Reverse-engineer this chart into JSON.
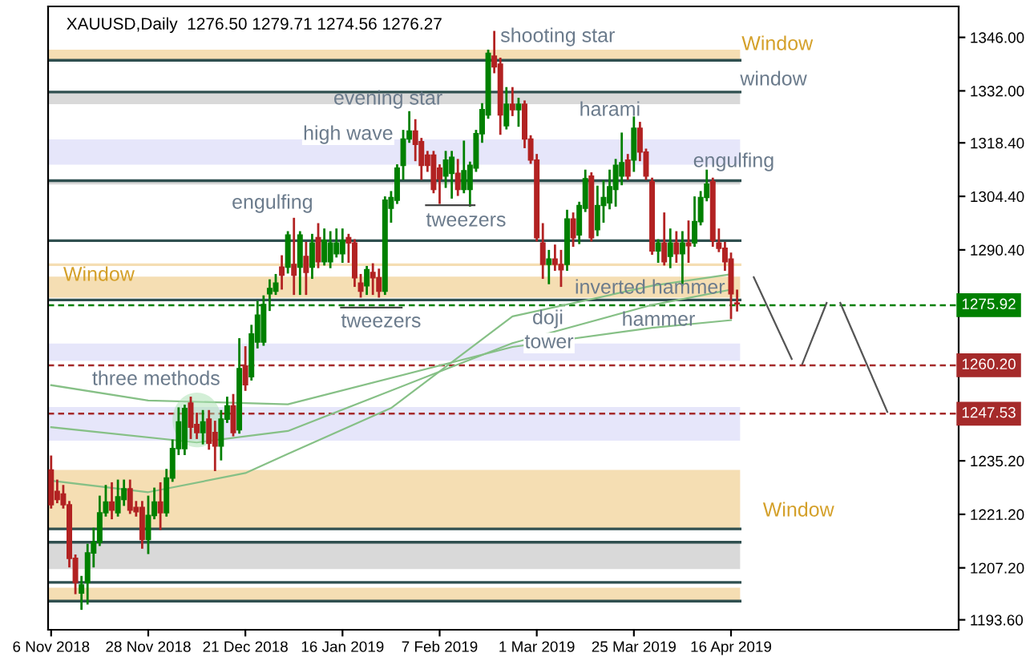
{
  "chart_data": {
    "type": "candlestick",
    "title": "XAUUSD,Daily  1276.50 1279.71 1274.56 1276.27",
    "categories": [
      "6 Nov 2018",
      null,
      null,
      null,
      null,
      null,
      null,
      null,
      null,
      null,
      null,
      null,
      null,
      null,
      null,
      null,
      "28 Nov 2018",
      null,
      null,
      null,
      null,
      null,
      null,
      null,
      null,
      null,
      null,
      null,
      null,
      null,
      null,
      null,
      "21 Dec 2018",
      null,
      null,
      null,
      null,
      null,
      null,
      null,
      null,
      null,
      null,
      null,
      null,
      null,
      null,
      null,
      "16 Jan 2019",
      null,
      null,
      null,
      null,
      null,
      null,
      null,
      null,
      null,
      null,
      null,
      null,
      null,
      null,
      null,
      "7 Feb 2019",
      null,
      null,
      null,
      null,
      null,
      null,
      null,
      null,
      null,
      null,
      null,
      null,
      null,
      null,
      null,
      "1 Mar 2019",
      null,
      null,
      null,
      null,
      null,
      null,
      null,
      null,
      null,
      null,
      null,
      null,
      null,
      null,
      null,
      "25 Mar 2019",
      null,
      null,
      null,
      null,
      null,
      null,
      null,
      null,
      null,
      null,
      null,
      null,
      null,
      null,
      null,
      "16 Apr 2019",
      null,
      null,
      null,
      null,
      null,
      null,
      null,
      null,
      null,
      null,
      null,
      null,
      null,
      null,
      null,
      null,
      null,
      null,
      null,
      null,
      null,
      null,
      null,
      null,
      null,
      null,
      null,
      null,
      null,
      null,
      null,
      null,
      null,
      null,
      null,
      null,
      null
    ],
    "ohlc": [
      [
        1232.8,
        1236.3,
        1223.0,
        1223.7
      ],
      [
        1227.2,
        1230.0,
        1224.4,
        1225.1
      ],
      [
        1226.5,
        1228.6,
        1223.0,
        1223.7
      ],
      [
        1223.7,
        1224.4,
        1207.6,
        1209.7
      ],
      [
        1209.7,
        1210.4,
        1200.6,
        1203.4
      ],
      [
        1200.6,
        1204.8,
        1196.5,
        1202.7
      ],
      [
        1203.4,
        1213.2,
        1197.9,
        1211.1
      ],
      [
        1211.1,
        1217.4,
        1207.6,
        1213.9
      ],
      [
        1213.9,
        1225.8,
        1213.2,
        1221.6
      ],
      [
        1221.6,
        1228.6,
        1220.9,
        1224.4
      ],
      [
        1224.4,
        1229.3,
        1220.2,
        1222.3
      ],
      [
        1221.6,
        1230.0,
        1220.9,
        1225.8
      ],
      [
        1225.1,
        1230.0,
        1223.7,
        1227.9
      ],
      [
        1227.9,
        1230.0,
        1221.6,
        1222.3
      ],
      [
        1223.0,
        1224.4,
        1220.9,
        1221.9
      ],
      [
        1223.0,
        1224.4,
        1212.5,
        1214.6
      ],
      [
        1214.6,
        1225.8,
        1211.1,
        1220.9
      ],
      [
        1220.9,
        1227.9,
        1220.2,
        1224.4
      ],
      [
        1224.4,
        1229.3,
        1217.4,
        1221.6
      ],
      [
        1221.6,
        1232.8,
        1220.9,
        1230.7
      ],
      [
        1230.7,
        1240.5,
        1230.0,
        1238.4
      ],
      [
        1238.4,
        1248.9,
        1237.0,
        1245.4
      ],
      [
        1238.4,
        1249.6,
        1237.0,
        1248.9
      ],
      [
        1250.3,
        1251.7,
        1241.2,
        1244.0
      ],
      [
        1244.7,
        1247.5,
        1241.2,
        1242.6
      ],
      [
        1242.6,
        1248.2,
        1239.8,
        1245.4
      ],
      [
        1246.1,
        1248.2,
        1238.4,
        1239.8
      ],
      [
        1242.6,
        1245.4,
        1232.8,
        1239.1
      ],
      [
        1239.1,
        1248.2,
        1235.6,
        1246.1
      ],
      [
        1246.1,
        1251.7,
        1245.4,
        1249.6
      ],
      [
        1249.6,
        1252.4,
        1241.9,
        1242.6
      ],
      [
        1243.3,
        1267.0,
        1242.6,
        1259.3
      ],
      [
        1260.0,
        1264.9,
        1253.8,
        1255.1
      ],
      [
        1257.2,
        1270.5,
        1256.5,
        1268.4
      ],
      [
        1266.3,
        1276.8,
        1264.9,
        1273.3
      ],
      [
        1266.3,
        1278.2,
        1265.6,
        1276.1
      ],
      [
        1278.9,
        1282.4,
        1274.7,
        1280.3
      ],
      [
        1279.6,
        1283.8,
        1278.9,
        1281.7
      ],
      [
        1285.9,
        1288.7,
        1280.3,
        1283.8
      ],
      [
        1285.9,
        1295.0,
        1284.5,
        1294.3
      ],
      [
        1286.6,
        1298.5,
        1278.9,
        1283.8
      ],
      [
        1285.9,
        1295.0,
        1278.9,
        1294.3
      ],
      [
        1288.7,
        1292.2,
        1278.9,
        1284.5
      ],
      [
        1285.9,
        1294.3,
        1283.1,
        1292.2
      ],
      [
        1293.6,
        1297.1,
        1285.9,
        1287.3
      ],
      [
        1287.3,
        1295.7,
        1286.6,
        1292.9
      ],
      [
        1287.3,
        1295.0,
        1285.9,
        1292.2
      ],
      [
        1289.4,
        1295.7,
        1288.7,
        1292.2
      ],
      [
        1289.4,
        1295.7,
        1287.3,
        1292.9
      ],
      [
        1293.6,
        1294.3,
        1287.3,
        1292.2
      ],
      [
        1292.2,
        1292.9,
        1281.0,
        1283.1
      ],
      [
        1281.7,
        1283.8,
        1278.2,
        1279.6
      ],
      [
        1281.0,
        1285.9,
        1278.9,
        1285.2
      ],
      [
        1284.5,
        1286.6,
        1278.9,
        1283.1
      ],
      [
        1283.1,
        1285.2,
        1278.2,
        1279.6
      ],
      [
        1279.6,
        1304.1,
        1278.9,
        1303.4
      ],
      [
        1301.3,
        1305.5,
        1297.8,
        1304.1
      ],
      [
        1303.4,
        1312.5,
        1302.7,
        1311.8
      ],
      [
        1312.5,
        1321.5,
        1309.0,
        1319.4
      ],
      [
        1319.4,
        1326.4,
        1318.7,
        1321.5
      ],
      [
        1321.5,
        1324.3,
        1313.9,
        1318.0
      ],
      [
        1318.7,
        1319.4,
        1309.0,
        1312.5
      ],
      [
        1315.2,
        1316.0,
        1311.1,
        1312.5
      ],
      [
        1315.2,
        1316.0,
        1305.5,
        1306.2
      ],
      [
        1311.8,
        1312.5,
        1302.7,
        1309.0
      ],
      [
        1309.7,
        1316.0,
        1306.9,
        1313.9
      ],
      [
        1310.4,
        1316.0,
        1304.1,
        1314.6
      ],
      [
        1310.4,
        1313.9,
        1304.8,
        1306.2
      ],
      [
        1306.2,
        1318.7,
        1305.5,
        1311.1
      ],
      [
        1306.2,
        1313.2,
        1302.0,
        1312.5
      ],
      [
        1311.8,
        1321.5,
        1311.1,
        1320.8
      ],
      [
        1320.8,
        1328.5,
        1318.7,
        1327.1
      ],
      [
        1325.7,
        1342.5,
        1325.0,
        1341.8
      ],
      [
        1341.1,
        1347.4,
        1336.9,
        1338.3
      ],
      [
        1339.0,
        1340.4,
        1320.8,
        1325.7
      ],
      [
        1322.9,
        1332.7,
        1322.2,
        1328.5
      ],
      [
        1328.5,
        1332.7,
        1325.7,
        1327.1
      ],
      [
        1327.1,
        1329.9,
        1322.9,
        1328.5
      ],
      [
        1328.5,
        1329.2,
        1317.3,
        1319.4
      ],
      [
        1319.4,
        1320.1,
        1313.2,
        1313.9
      ],
      [
        1313.9,
        1315.2,
        1292.9,
        1293.6
      ],
      [
        1292.2,
        1297.1,
        1283.1,
        1286.6
      ],
      [
        1286.6,
        1290.1,
        1281.7,
        1288.0
      ],
      [
        1288.0,
        1291.5,
        1285.2,
        1286.6
      ],
      [
        1286.6,
        1290.1,
        1281.0,
        1285.2
      ],
      [
        1286.6,
        1300.6,
        1285.2,
        1298.5
      ],
      [
        1298.5,
        1299.9,
        1291.5,
        1293.6
      ],
      [
        1294.3,
        1302.7,
        1292.2,
        1302.0
      ],
      [
        1301.3,
        1311.1,
        1300.6,
        1309.0
      ],
      [
        1309.7,
        1310.4,
        1292.9,
        1293.6
      ],
      [
        1295.7,
        1306.9,
        1294.3,
        1302.0
      ],
      [
        1302.0,
        1308.3,
        1297.8,
        1304.1
      ],
      [
        1302.7,
        1311.1,
        1301.3,
        1306.9
      ],
      [
        1306.2,
        1313.9,
        1302.0,
        1312.5
      ],
      [
        1309.7,
        1320.8,
        1307.6,
        1313.2
      ],
      [
        1313.9,
        1315.2,
        1309.0,
        1309.7
      ],
      [
        1313.9,
        1325.0,
        1311.1,
        1322.2
      ],
      [
        1322.2,
        1323.6,
        1313.9,
        1316.0
      ],
      [
        1316.0,
        1316.6,
        1309.0,
        1309.7
      ],
      [
        1308.3,
        1309.0,
        1289.4,
        1290.1
      ],
      [
        1290.1,
        1292.9,
        1287.3,
        1292.2
      ],
      [
        1292.2,
        1299.9,
        1286.6,
        1287.3
      ],
      [
        1288.7,
        1295.7,
        1285.9,
        1292.2
      ],
      [
        1292.2,
        1295.0,
        1287.3,
        1289.4
      ],
      [
        1289.4,
        1295.0,
        1281.7,
        1292.2
      ],
      [
        1292.2,
        1297.8,
        1287.3,
        1291.5
      ],
      [
        1292.2,
        1304.1,
        1291.5,
        1297.8
      ],
      [
        1297.8,
        1305.5,
        1297.1,
        1304.1
      ],
      [
        1304.1,
        1311.1,
        1303.4,
        1307.6
      ],
      [
        1308.3,
        1309.0,
        1291.5,
        1292.9
      ],
      [
        1292.2,
        1295.7,
        1290.1,
        1290.8
      ],
      [
        1290.8,
        1292.2,
        1285.2,
        1287.3
      ],
      [
        1288.0,
        1289.4,
        1272.6,
        1278.9
      ],
      [
        1276.5,
        1279.71,
        1274.56,
        1276.27
      ],
      null,
      null,
      null,
      null,
      null,
      null,
      null,
      null,
      null,
      null,
      null,
      null,
      null,
      null,
      null,
      null,
      null,
      null,
      null,
      null,
      null,
      null,
      null,
      null,
      null,
      null,
      null,
      null,
      null,
      null,
      null,
      null,
      null,
      null,
      null,
      null
    ],
    "colors": [
      "#b22222",
      "#b22222",
      "#b22222",
      "#b22222",
      "#b22222",
      "#008000",
      "#008000",
      "#008000",
      "#008000",
      "#008000",
      "#b22222",
      "#008000",
      "#008000",
      "#b22222",
      "#b22222",
      "#b22222",
      "#008000",
      "#008000",
      "#b22222",
      "#008000",
      "#008000",
      "#008000",
      "#008000",
      "#b22222",
      "#b22222",
      "#008000",
      "#b22222",
      "#b22222",
      "#008000",
      "#008000",
      "#b22222",
      "#008000",
      "#b22222",
      "#008000",
      "#008000",
      "#008000",
      "#008000",
      "#008000",
      "#b22222",
      "#008000",
      "#b22222",
      "#008000",
      "#b22222",
      "#008000",
      "#b22222",
      "#008000",
      "#008000",
      "#008000",
      "#008000",
      "#b22222",
      "#b22222",
      "#b22222",
      "#008000",
      "#b22222",
      "#b22222",
      "#008000",
      "#008000",
      "#008000",
      "#008000",
      "#008000",
      "#b22222",
      "#b22222",
      "#b22222",
      "#b22222",
      "#b22222",
      "#008000",
      "#008000",
      "#b22222",
      "#008000",
      "#008000",
      "#008000",
      "#008000",
      "#008000",
      "#b22222",
      "#b22222",
      "#008000",
      "#b22222",
      "#008000",
      "#b22222",
      "#b22222",
      "#b22222",
      "#b22222",
      "#008000",
      "#b22222",
      "#b22222",
      "#008000",
      "#b22222",
      "#008000",
      "#008000",
      "#b22222",
      "#008000",
      "#008000",
      "#008000",
      "#008000",
      "#008000",
      "#b22222",
      "#008000",
      "#b22222",
      "#b22222",
      "#b22222",
      "#008000",
      "#b22222",
      "#008000",
      "#b22222",
      "#008000",
      "#b22222",
      "#008000",
      "#008000",
      "#008000",
      "#b22222",
      "#b22222",
      "#b22222",
      "#b22222",
      "#b22222",
      null,
      null,
      null,
      null,
      null,
      null,
      null,
      null,
      null,
      null,
      null,
      null,
      null,
      null,
      null,
      null,
      null,
      null,
      null,
      null,
      null,
      null,
      null,
      null,
      null,
      null,
      null,
      null,
      null,
      null,
      null,
      null,
      null,
      null,
      null,
      null
    ],
    "series": [
      {
        "type": "line",
        "color": "#86c086",
        "values": [
          1230,
          null,
          null,
          null,
          null,
          null,
          null,
          null,
          null,
          null,
          null,
          null,
          null,
          null,
          null,
          null,
          1227,
          null,
          null,
          null,
          null,
          null,
          null,
          null,
          null,
          null,
          null,
          null,
          null,
          null,
          null,
          null,
          1232,
          null,
          null,
          null,
          null,
          null,
          null,
          1237,
          null,
          null,
          null,
          null,
          null,
          null,
          null,
          null,
          null,
          null,
          null,
          null,
          null,
          null,
          null,
          null,
          1249,
          null,
          null,
          null,
          null,
          null,
          null,
          null,
          null,
          null,
          null,
          null,
          null,
          null,
          null,
          null,
          null,
          null,
          null,
          null,
          1273,
          null,
          null,
          null,
          null,
          null,
          null,
          null,
          null,
          null,
          null,
          null,
          null,
          null,
          null,
          null,
          null,
          null,
          null,
          null,
          null,
          null,
          null,
          1281,
          null,
          null,
          null,
          null,
          null,
          null,
          null,
          null,
          null,
          null,
          null,
          null,
          1284,
          null,
          null,
          null,
          null,
          null,
          null,
          null,
          null,
          null,
          null,
          null,
          null,
          null,
          null,
          null,
          null,
          null,
          null,
          null,
          null,
          null,
          null,
          null,
          null,
          null,
          null,
          null,
          null,
          null,
          null,
          null,
          null,
          null,
          null,
          null,
          null,
          null
        ]
      },
      {
        "type": "line",
        "color": "#86c086",
        "values": [
          1244,
          null,
          null,
          null,
          null,
          null,
          null,
          null,
          null,
          null,
          null,
          null,
          null,
          null,
          null,
          null,
          null,
          null,
          null,
          null,
          null,
          null,
          null,
          null,
          1240,
          null,
          null,
          null,
          null,
          null,
          null,
          null,
          null,
          null,
          null,
          null,
          null,
          null,
          null,
          1243,
          null,
          null,
          null,
          null,
          null,
          null,
          null,
          null,
          null,
          null,
          null,
          null,
          null,
          null,
          null,
          null,
          null,
          null,
          null,
          null,
          null,
          null,
          null,
          null,
          null,
          null,
          null,
          null,
          null,
          null,
          null,
          null,
          null,
          null,
          null,
          null,
          1266,
          null,
          null,
          null,
          null,
          null,
          null,
          null,
          null,
          null,
          null,
          null,
          null,
          null,
          null,
          null,
          null,
          null,
          null,
          null,
          null,
          null,
          null,
          1276,
          null,
          null,
          null,
          null,
          null,
          null,
          null,
          null,
          null,
          null,
          null,
          null,
          1280,
          null,
          null,
          null,
          null,
          null,
          null,
          null,
          null,
          null,
          null,
          null,
          null,
          null,
          null,
          null,
          null,
          null,
          null,
          null,
          null,
          null,
          null,
          null,
          null,
          null,
          null,
          null,
          null,
          null,
          null,
          null,
          null,
          null,
          null,
          null,
          null,
          null
        ]
      },
      {
        "type": "line",
        "color": "#86c086",
        "values": [
          1255,
          null,
          null,
          null,
          null,
          null,
          null,
          null,
          null,
          null,
          null,
          null,
          null,
          null,
          null,
          null,
          1251,
          null,
          null,
          null,
          null,
          null,
          null,
          null,
          null,
          null,
          null,
          null,
          null,
          null,
          null,
          null,
          null,
          null,
          null,
          null,
          null,
          null,
          null,
          1250,
          null,
          null,
          null,
          null,
          null,
          null,
          null,
          null,
          null,
          null,
          null,
          null,
          null,
          null,
          null,
          null,
          null,
          null,
          null,
          null,
          null,
          null,
          null,
          null,
          null,
          null,
          null,
          null,
          null,
          null,
          null,
          null,
          null,
          null,
          null,
          null,
          1265,
          null,
          null,
          null,
          null,
          null,
          null,
          null,
          null,
          null,
          null,
          null,
          null,
          null,
          null,
          null,
          null,
          null,
          null,
          null,
          null,
          null,
          null,
          1270,
          null,
          null,
          null,
          null,
          null,
          null,
          null,
          null,
          null,
          null,
          null,
          null,
          1272,
          null,
          null,
          null,
          null,
          null,
          null,
          null,
          null,
          null,
          null,
          null,
          null,
          null,
          null,
          null,
          null,
          null,
          null,
          null,
          null,
          null,
          null,
          null,
          null,
          null,
          null,
          null,
          null,
          null,
          null,
          null,
          null,
          null,
          null,
          null,
          null,
          null
        ]
      }
    ],
    "bands": [
      {
        "axis": "y",
        "from": 1340.0,
        "to": 1342.8,
        "color": "#f5deb3"
      },
      {
        "axis": "y",
        "from": 1328.5,
        "to": 1331.7,
        "color": "#d9d9d9"
      },
      {
        "axis": "y",
        "from": 1312.7,
        "to": 1319.3,
        "color": "#e6e6fa"
      },
      {
        "axis": "y",
        "from": 1307.5,
        "to": 1308.5,
        "color": "#d9d9d9"
      },
      {
        "axis": "y",
        "from": 1277.9,
        "to": 1283.4,
        "color": "#f5deb3"
      },
      {
        "axis": "y",
        "from": 1261.4,
        "to": 1265.9,
        "color": "#e6e6fa"
      },
      {
        "axis": "y",
        "from": 1240.5,
        "to": 1249.3,
        "color": "#e6e6fa"
      },
      {
        "axis": "y",
        "from": 1217.4,
        "to": 1232.8,
        "color": "#f5deb3"
      },
      {
        "axis": "y",
        "from": 1206.9,
        "to": 1213.9,
        "color": "#d9d9d9"
      },
      {
        "axis": "y",
        "from": 1198.5,
        "to": 1202.0,
        "color": "#f5deb3"
      }
    ],
    "ref_lines": [
      {
        "axis": "y",
        "value": 1340.0,
        "color": "#2f4f4f",
        "line_style": "solid"
      },
      {
        "axis": "y",
        "value": 1331.7,
        "color": "#2f4f4f",
        "line_style": "solid"
      },
      {
        "axis": "y",
        "value": 1308.5,
        "color": "#2f4f4f",
        "line_style": "solid"
      },
      {
        "axis": "y",
        "value": 1292.8,
        "color": "#2f4f4f",
        "line_style": "solid"
      },
      {
        "axis": "y",
        "value": 1286.5,
        "color": "#f5deb3",
        "line_style": "solid"
      },
      {
        "axis": "y",
        "value": 1277.3,
        "color": "#2f4f4f",
        "line_style": "solid"
      },
      {
        "axis": "y",
        "value": 1217.4,
        "color": "#2f4f4f",
        "line_style": "solid"
      },
      {
        "axis": "y",
        "value": 1213.9,
        "color": "#2f4f4f",
        "line_style": "solid"
      },
      {
        "axis": "y",
        "value": 1203.4,
        "color": "#2f4f4f",
        "line_style": "solid"
      },
      {
        "axis": "y",
        "value": 1198.5,
        "color": "#2f4f4f",
        "line_style": "solid"
      },
      {
        "axis": "y",
        "value": 1275.92,
        "label": "1275.92",
        "color": "#008000",
        "line_style": "dashed"
      },
      {
        "axis": "y",
        "value": 1260.2,
        "label": "1260.20",
        "color": "#a52a2a",
        "line_style": "dashed"
      },
      {
        "axis": "y",
        "value": 1247.53,
        "label": "1247.53",
        "color": "#a52a2a",
        "line_style": "dashed"
      }
    ],
    "annotations": [
      "Window",
      "window",
      "shooting star",
      "evening star",
      "high wave",
      "harami",
      "engulfing",
      "engulfing",
      "tweezers",
      "Window",
      "inverted hammer",
      "tweezers",
      "doji",
      "tower",
      "hammer",
      "three methods",
      "Window"
    ],
    "ylim": [
      1191.0,
      1354.1
    ],
    "yticks": [
      {
        "value": 1193.6,
        "label": "1193.60"
      },
      {
        "value": 1207.2,
        "label": "1207.20"
      },
      {
        "value": 1221.2,
        "label": "1221.20"
      },
      {
        "value": 1235.2,
        "label": "1235.20"
      },
      {
        "value": 1290.4,
        "label": "1290.40"
      },
      {
        "value": 1304.4,
        "label": "1304.40"
      },
      {
        "value": 1318.4,
        "label": "1318.40"
      },
      {
        "value": 1332.0,
        "label": "1332.00"
      },
      {
        "value": 1346.0,
        "label": "1346.00"
      }
    ]
  }
}
